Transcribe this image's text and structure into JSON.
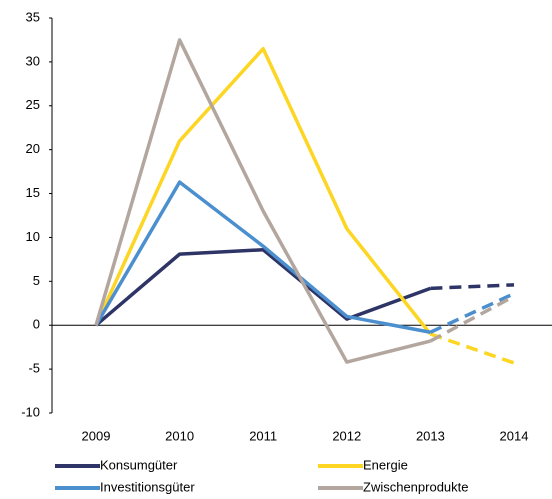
{
  "chart_data": {
    "type": "line",
    "categories": [
      "2009",
      "2010",
      "2011",
      "2012",
      "2013",
      "2014"
    ],
    "dashed_from": "2013",
    "ylim": [
      -10,
      35
    ],
    "yticks": [
      -10,
      -5,
      0,
      5,
      10,
      15,
      20,
      25,
      30,
      35
    ],
    "grid": false,
    "series": [
      {
        "name": "Konsumgüter",
        "color": "#2e3566",
        "values": [
          0,
          8.1,
          8.6,
          0.7,
          4.2,
          4.6
        ]
      },
      {
        "name": "Energie",
        "color": "#fdd523",
        "values": [
          0,
          21,
          31.5,
          11,
          -1,
          -4.3
        ]
      },
      {
        "name": "Investitionsgüter",
        "color": "#4b8fcf",
        "values": [
          0,
          16.3,
          9,
          1,
          -0.8,
          3.6
        ]
      },
      {
        "name": "Zwischenprodukte",
        "color": "#b3a69e",
        "values": [
          0,
          32.5,
          13,
          -4.2,
          -1.8,
          3.3
        ]
      }
    ]
  }
}
